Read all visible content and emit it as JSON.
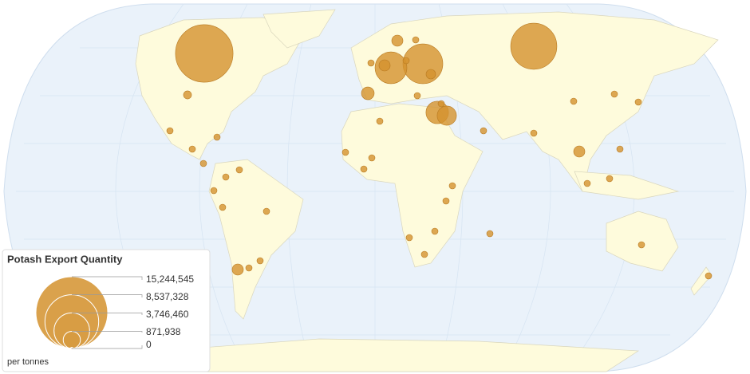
{
  "map": {
    "legend": {
      "title": "Potash Export Quantity",
      "ticks": [
        {
          "value": 15244545,
          "label": "15,244,545"
        },
        {
          "value": 8537328,
          "label": "8,537,328"
        },
        {
          "value": 3746460,
          "label": "3,746,460"
        },
        {
          "value": 871938,
          "label": "871,938"
        },
        0
      ],
      "unit": "per tonnes"
    },
    "bubble_color": "#d4922e",
    "bubbles": [
      9800000,
      6300000,
      4700000,
      3000000,
      1500000,
      1100000,
      480000,
      370000,
      370000,
      370000,
      370000,
      270000,
      190000,
      120000,
      120000,
      120000,
      120000,
      120000,
      120000,
      120000,
      120000,
      120000,
      120000,
      120000,
      120000,
      120000,
      120000,
      120000,
      120000,
      120000,
      120000,
      120000,
      120000,
      120000,
      120000,
      120000,
      120000,
      120000,
      120000,
      120000,
      120000,
      120000,
      120000,
      120000,
      120000,
      120000,
      120000,
      120000,
      120000
    ]
  }
}
